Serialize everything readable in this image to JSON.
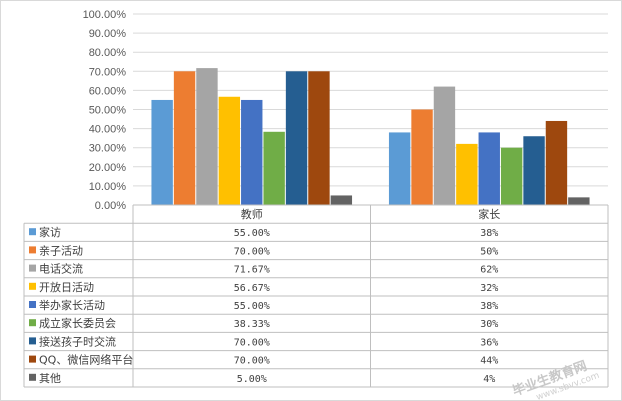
{
  "chart_data": {
    "type": "bar",
    "categories": [
      "教师",
      "家长"
    ],
    "series": [
      {
        "name": "家访",
        "values": [
          55.0,
          38
        ],
        "labels": [
          "55.00%",
          "38%"
        ],
        "color": "#5b9bd5"
      },
      {
        "name": "亲子活动",
        "values": [
          70.0,
          50
        ],
        "labels": [
          "70.00%",
          "50%"
        ],
        "color": "#ed7d31"
      },
      {
        "name": "电话交流",
        "values": [
          71.67,
          62
        ],
        "labels": [
          "71.67%",
          "62%"
        ],
        "color": "#a5a5a5"
      },
      {
        "name": "开放日活动",
        "values": [
          56.67,
          32
        ],
        "labels": [
          "56.67%",
          "32%"
        ],
        "color": "#ffc000"
      },
      {
        "name": "举办家长活动",
        "values": [
          55.0,
          38
        ],
        "labels": [
          "55.00%",
          "38%"
        ],
        "color": "#4472c4"
      },
      {
        "name": "成立家长委员会",
        "values": [
          38.33,
          30
        ],
        "labels": [
          "38.33%",
          "30%"
        ],
        "color": "#70ad47"
      },
      {
        "name": "接送孩子时交流",
        "values": [
          70.0,
          36
        ],
        "labels": [
          "70.00%",
          "36%"
        ],
        "color": "#255e91"
      },
      {
        "name": "QQ、微信网络平台",
        "values": [
          70.0,
          44
        ],
        "labels": [
          "70.00%",
          "44%"
        ],
        "color": "#9e480e"
      },
      {
        "name": "其他",
        "values": [
          5.0,
          4
        ],
        "labels": [
          "5.00%",
          "4%"
        ],
        "color": "#636363"
      }
    ],
    "yticks": [
      "0.00%",
      "10.00%",
      "20.00%",
      "30.00%",
      "40.00%",
      "50.00%",
      "60.00%",
      "70.00%",
      "80.00%",
      "90.00%",
      "100.00%"
    ],
    "ylim": [
      0,
      100
    ],
    "grid": true,
    "legend": "data-table"
  },
  "watermark": {
    "text": "毕业生教育网",
    "url": "www.sbvv.com"
  }
}
